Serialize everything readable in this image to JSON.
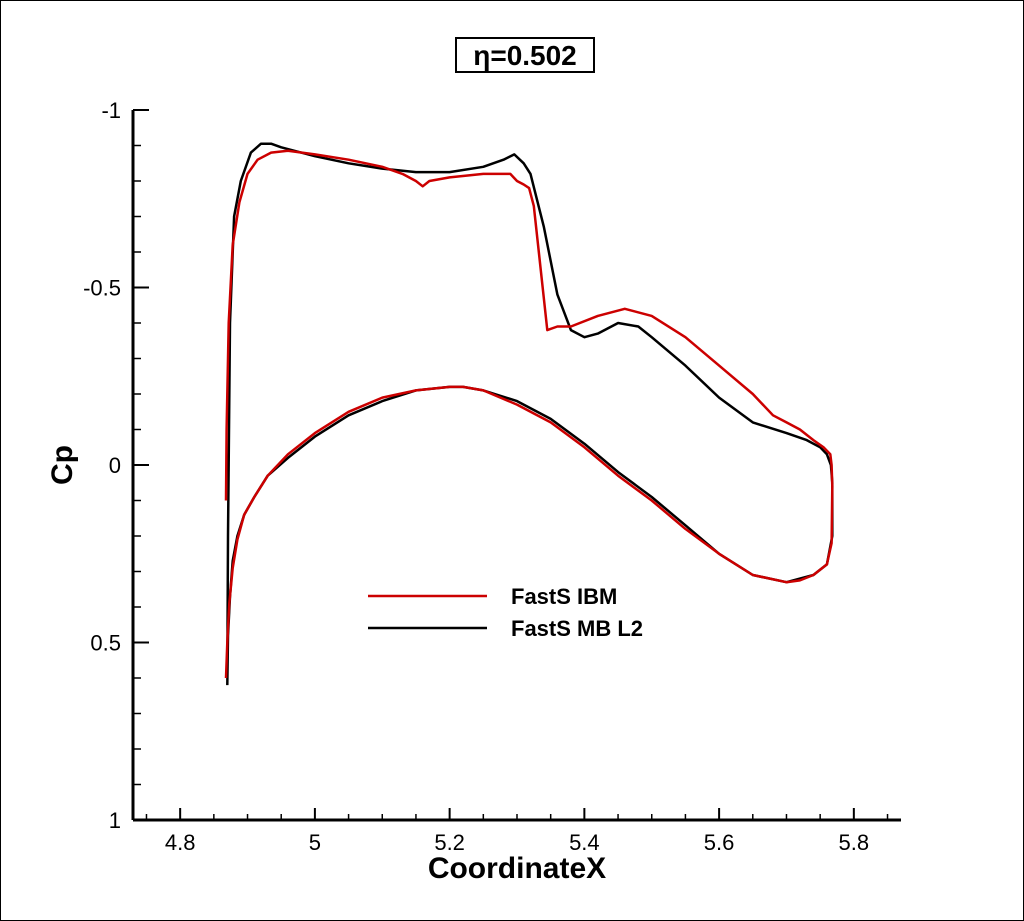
{
  "chart_data": {
    "type": "line",
    "title": "η=0.502",
    "xlabel": "CoordinateX",
    "ylabel": "Cp",
    "xlim": [
      4.73,
      5.87
    ],
    "ylim": [
      1.0,
      -1.0
    ],
    "y_reversed": true,
    "x_ticks": [
      4.8,
      5.0,
      5.2,
      5.4,
      5.6,
      5.8
    ],
    "x_tick_labels": [
      "4.8",
      "5",
      "5.2",
      "5.4",
      "5.6",
      "5.8"
    ],
    "y_ticks": [
      -1.0,
      -0.5,
      0.0,
      0.5,
      1.0
    ],
    "y_tick_labels": [
      "-1",
      "-0.5",
      "0",
      "0.5",
      "1"
    ],
    "grid": false,
    "legend_position": "bottom-center",
    "series": [
      {
        "name": "FastS IBM",
        "color": "#cc0000",
        "x": [
          4.868,
          4.869,
          4.872,
          4.878,
          4.888,
          4.9,
          4.915,
          4.935,
          4.96,
          5.0,
          5.05,
          5.1,
          5.13,
          5.15,
          5.16,
          5.17,
          5.2,
          5.25,
          5.29,
          5.3,
          5.31,
          5.318,
          5.325,
          5.345,
          5.36,
          5.38,
          5.42,
          5.46,
          5.5,
          5.55,
          5.6,
          5.65,
          5.68,
          5.7,
          5.72,
          5.74,
          5.755,
          5.765,
          5.767,
          5.768,
          5.767,
          5.76,
          5.74,
          5.72,
          5.7,
          5.65,
          5.6,
          5.55,
          5.5,
          5.45,
          5.4,
          5.35,
          5.3,
          5.25,
          5.22,
          5.2,
          5.15,
          5.1,
          5.05,
          5.0,
          4.96,
          4.93,
          4.91,
          4.895,
          4.885,
          4.878,
          4.873,
          4.87,
          4.868
        ],
        "y": [
          0.1,
          -0.1,
          -0.4,
          -0.62,
          -0.74,
          -0.82,
          -0.86,
          -0.88,
          -0.885,
          -0.875,
          -0.86,
          -0.84,
          -0.82,
          -0.8,
          -0.785,
          -0.8,
          -0.81,
          -0.82,
          -0.82,
          -0.8,
          -0.79,
          -0.78,
          -0.73,
          -0.38,
          -0.39,
          -0.39,
          -0.42,
          -0.44,
          -0.42,
          -0.36,
          -0.28,
          -0.2,
          -0.14,
          -0.12,
          -0.1,
          -0.07,
          -0.05,
          -0.03,
          0.0,
          0.06,
          0.22,
          0.28,
          0.31,
          0.325,
          0.33,
          0.31,
          0.25,
          0.18,
          0.1,
          0.03,
          -0.05,
          -0.12,
          -0.17,
          -0.21,
          -0.22,
          -0.22,
          -0.21,
          -0.19,
          -0.15,
          -0.09,
          -0.03,
          0.03,
          0.09,
          0.14,
          0.21,
          0.29,
          0.39,
          0.5,
          0.6
        ]
      },
      {
        "name": "FastS MB L2",
        "color": "#000000",
        "x": [
          4.87,
          4.871,
          4.874,
          4.88,
          4.89,
          4.905,
          4.92,
          4.935,
          4.95,
          5.0,
          5.05,
          5.1,
          5.15,
          5.2,
          5.25,
          5.28,
          5.296,
          5.31,
          5.32,
          5.34,
          5.36,
          5.38,
          5.4,
          5.42,
          5.45,
          5.48,
          5.5,
          5.55,
          5.6,
          5.65,
          5.7,
          5.73,
          5.75,
          5.76,
          5.766,
          5.768,
          5.768,
          5.76,
          5.74,
          5.72,
          5.7,
          5.65,
          5.6,
          5.55,
          5.5,
          5.45,
          5.4,
          5.35,
          5.3,
          5.25,
          5.22,
          5.2,
          5.15,
          5.1,
          5.05,
          5.0,
          4.96,
          4.93,
          4.91,
          4.895,
          4.885,
          4.878,
          4.874,
          4.871,
          4.87
        ],
        "y": [
          0.6,
          0.2,
          -0.4,
          -0.7,
          -0.8,
          -0.88,
          -0.905,
          -0.905,
          -0.895,
          -0.87,
          -0.85,
          -0.835,
          -0.825,
          -0.825,
          -0.84,
          -0.86,
          -0.875,
          -0.85,
          -0.82,
          -0.67,
          -0.48,
          -0.38,
          -0.36,
          -0.37,
          -0.4,
          -0.39,
          -0.36,
          -0.28,
          -0.19,
          -0.12,
          -0.09,
          -0.07,
          -0.05,
          -0.03,
          0.0,
          0.05,
          0.2,
          0.28,
          0.31,
          0.32,
          0.33,
          0.31,
          0.25,
          0.17,
          0.09,
          0.02,
          -0.06,
          -0.13,
          -0.18,
          -0.21,
          -0.22,
          -0.22,
          -0.21,
          -0.18,
          -0.14,
          -0.08,
          -0.02,
          0.03,
          0.09,
          0.14,
          0.2,
          0.27,
          0.37,
          0.48,
          0.62
        ]
      }
    ]
  }
}
